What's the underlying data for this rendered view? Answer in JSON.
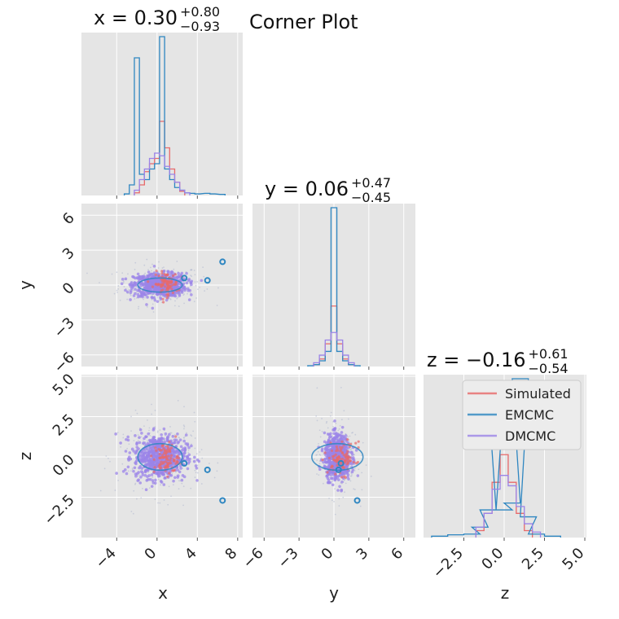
{
  "chart_data": {
    "type": "corner",
    "title": "Corner Plot",
    "parameters": [
      "x",
      "y",
      "z"
    ],
    "summary_titles": [
      {
        "param": "x",
        "prefix": "x = ",
        "median": "0.30",
        "plus": "+0.80",
        "minus": "−0.93"
      },
      {
        "param": "y",
        "prefix": "y = ",
        "median": "0.06",
        "plus": "+0.47",
        "minus": "−0.45"
      },
      {
        "param": "z",
        "prefix": "z = ",
        "median": "−0.16",
        "plus": "+0.61",
        "minus": "−0.54"
      }
    ],
    "axes": {
      "x": {
        "range": [
          -7.5,
          8.5
        ],
        "ticks": [
          -4,
          0,
          4,
          8
        ],
        "tick_labels": [
          "−4",
          "0",
          "4",
          "8"
        ],
        "label": "x"
      },
      "y": {
        "range": [
          -7,
          7
        ],
        "ticks": [
          -6,
          -3,
          0,
          3,
          6
        ],
        "tick_labels": [
          "−6",
          "−3",
          "0",
          "3",
          "6"
        ],
        "label": "y"
      },
      "z": {
        "range": [
          -5.0,
          5.1
        ],
        "ticks": [
          -2.5,
          0.0,
          2.5,
          5.0
        ],
        "tick_labels": [
          "−2.5",
          "0.0",
          "2.5",
          "5.0"
        ],
        "label": "z"
      }
    },
    "legend": {
      "placement": "upper-right of z marginal",
      "entries": [
        {
          "name": "Simulated",
          "color": "#e8696a"
        },
        {
          "name": "EMCMC",
          "color": "#2e86c1"
        },
        {
          "name": "DMCMC",
          "color": "#9b84e8"
        }
      ]
    },
    "grid": true,
    "background": "#e5e5e5",
    "series": [
      {
        "name": "Simulated",
        "color": "#e8696a",
        "marginals": {
          "x": {
            "centers": [
              -2.0,
              -1.5,
              -1.0,
              -0.5,
              0.0,
              0.5,
              1.0,
              1.5,
              2.0,
              2.5
            ],
            "heights": [
              0.05,
              0.2,
              0.45,
              0.6,
              0.7,
              1.4,
              0.9,
              0.5,
              0.25,
              0.08
            ]
          },
          "y": {
            "centers": [
              -1.5,
              -1.0,
              -0.5,
              0.0,
              0.5,
              1.0,
              1.5
            ],
            "heights": [
              0.05,
              0.2,
              0.6,
              1.6,
              0.6,
              0.2,
              0.05
            ]
          },
          "z": {
            "centers": [
              -1.5,
              -1.0,
              -0.5,
              0.0,
              0.5,
              1.0,
              1.5
            ],
            "heights": [
              0.1,
              0.35,
              0.8,
              1.2,
              0.8,
              0.35,
              0.1
            ]
          }
        },
        "center": {
          "x": 0.3,
          "y": 0.1,
          "z": -0.1
        }
      },
      {
        "name": "EMCMC",
        "color": "#2e86c1",
        "marginals": {
          "x": {
            "centers": [
              -3.0,
              -2.5,
              -2.0,
              -1.5,
              -1.0,
              -0.5,
              0.0,
              0.5,
              1.0,
              1.5,
              2.0,
              2.5,
              3.0,
              3.5,
              4.0,
              5.0,
              5.5,
              6.5
            ],
            "heights": [
              0.03,
              0.2,
              2.6,
              0.4,
              0.3,
              0.5,
              0.6,
              3.0,
              0.5,
              0.3,
              0.15,
              0.1,
              0.05,
              0.04,
              0.03,
              0.04,
              0.03,
              0.02
            ]
          },
          "y": {
            "centers": [
              -2.0,
              -1.5,
              -1.0,
              -0.5,
              0.0,
              0.5,
              1.0,
              1.5,
              2.0
            ],
            "heights": [
              0.02,
              0.05,
              0.15,
              0.4,
              4.2,
              0.4,
              0.15,
              0.05,
              0.02
            ]
          },
          "z": {
            "centers": [
              -4.0,
              -3.0,
              -2.0,
              -1.5,
              -1.0,
              -0.5,
              0.0,
              0.5,
              1.0,
              1.5,
              2.0,
              3.0
            ],
            "heights": [
              0.02,
              0.04,
              0.05,
              0.15,
              0.4,
              2.1,
              0.4,
              0.5,
              2.3,
              0.3,
              0.05,
              0.02
            ]
          }
        },
        "outliers": [
          {
            "x": 2.7,
            "y": 0.6,
            "z": -0.4
          },
          {
            "x": 5.0,
            "y": 0.4,
            "z": -0.8
          },
          {
            "x": 6.5,
            "y": 2.0,
            "z": -2.7
          }
        ]
      },
      {
        "name": "DMCMC",
        "color": "#9b84e8",
        "marginals": {
          "x": {
            "centers": [
              -2.0,
              -1.5,
              -1.0,
              -0.5,
              0.0,
              0.5,
              1.0,
              1.5,
              2.0,
              2.5,
              3.0
            ],
            "heights": [
              0.1,
              0.3,
              0.5,
              0.7,
              0.8,
              0.75,
              0.55,
              0.4,
              0.25,
              0.1,
              0.05
            ]
          },
          "y": {
            "centers": [
              -1.5,
              -1.0,
              -0.5,
              0.0,
              0.5,
              1.0,
              1.5
            ],
            "heights": [
              0.1,
              0.3,
              0.7,
              0.9,
              0.7,
              0.3,
              0.1
            ]
          },
          "z": {
            "centers": [
              -1.5,
              -1.0,
              -0.5,
              0.0,
              0.5,
              1.0,
              1.5,
              2.0
            ],
            "heights": [
              0.15,
              0.35,
              0.7,
              0.9,
              0.75,
              0.45,
              0.2,
              0.08
            ]
          }
        },
        "cloud_std": {
          "x": 1.3,
          "y": 0.55,
          "z": 0.75
        }
      }
    ]
  }
}
